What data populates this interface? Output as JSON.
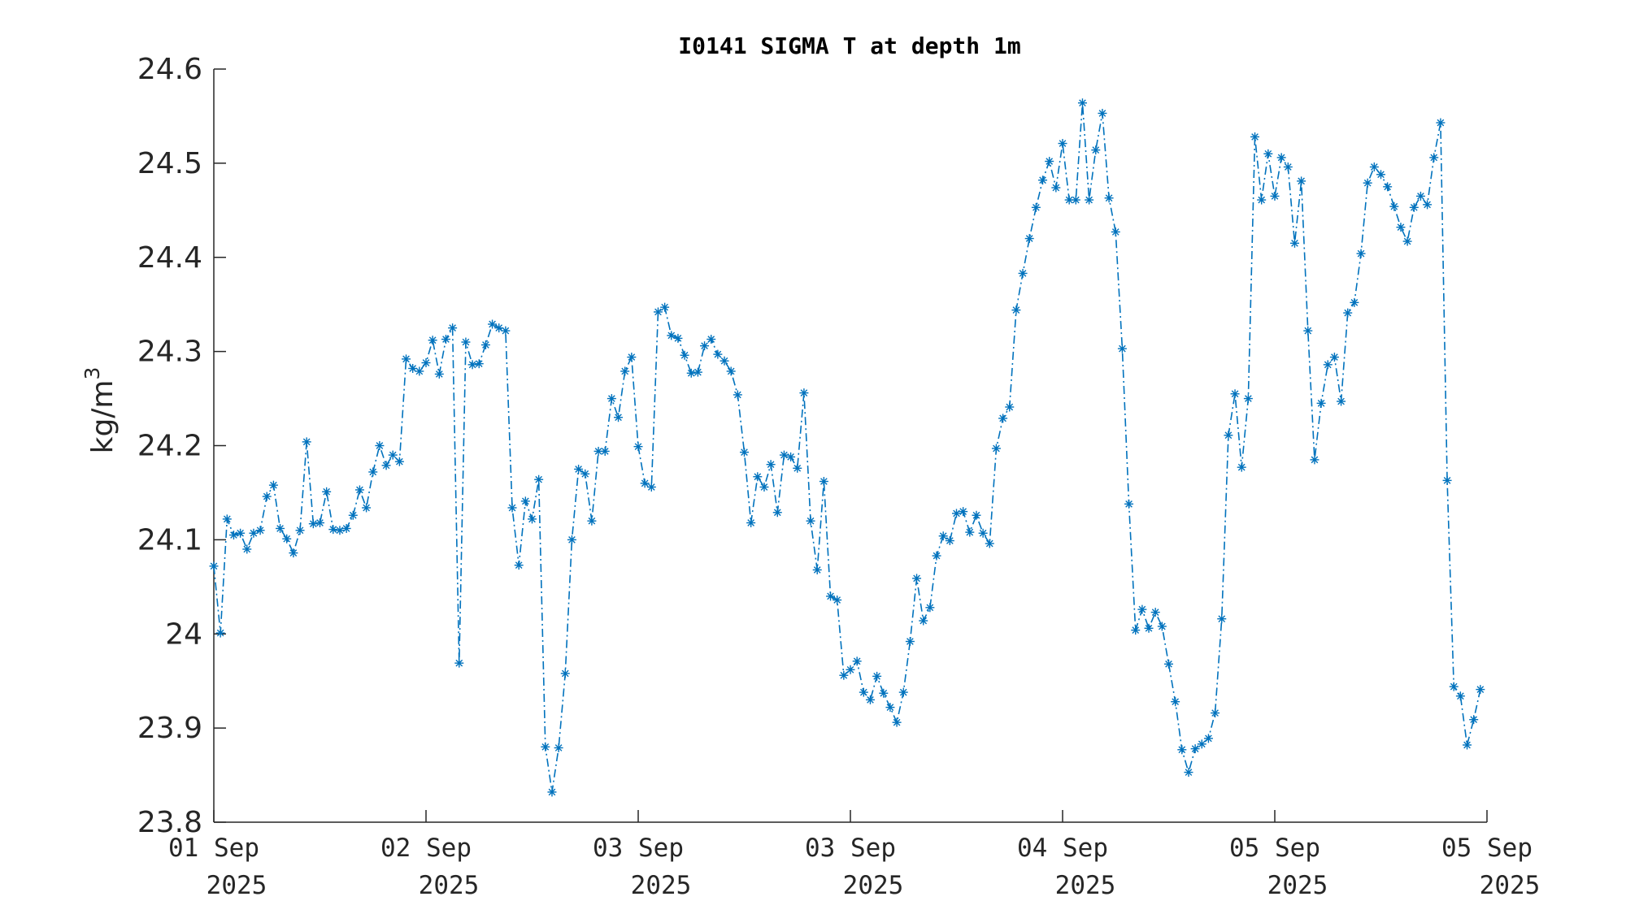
{
  "chart_data": {
    "type": "line",
    "title": "I0141 SIGMA T at depth 1m",
    "ylabel": "kg/m",
    "ylabel_superscript": "3",
    "xlabel": "",
    "ylim": [
      23.8,
      24.6
    ],
    "yticks": [
      "23.8",
      "23.9",
      "24",
      "24.1",
      "24.2",
      "24.3",
      "24.4",
      "24.5",
      "24.6"
    ],
    "xlim": [
      0,
      192
    ],
    "xticks": [
      {
        "line1": "01 Sep",
        "line2": "2025"
      },
      {
        "line1": "02 Sep",
        "line2": "2025"
      },
      {
        "line1": "03 Sep",
        "line2": "2025"
      },
      {
        "line1": "03 Sep",
        "line2": "2025"
      },
      {
        "line1": "04 Sep",
        "line2": "2025"
      },
      {
        "line1": "05 Sep",
        "line2": "2025"
      },
      {
        "line1": "05 Sep",
        "line2": "2025"
      }
    ],
    "grid": false,
    "legend": "none",
    "series_color": "#0072BD",
    "line_style": "dash-dot",
    "marker": "asterisk",
    "series": [
      {
        "values": [
          24.072,
          24.001,
          24.122,
          24.105,
          24.107,
          24.09,
          24.107,
          24.11,
          24.146,
          24.158,
          24.112,
          24.101,
          24.086,
          24.11,
          24.204,
          24.117,
          24.118,
          24.151,
          24.111,
          24.11,
          24.112,
          24.126,
          24.153,
          24.134,
          24.172,
          24.2,
          24.179,
          24.19,
          24.183,
          24.292,
          24.282,
          24.279,
          24.288,
          24.312,
          24.276,
          24.313,
          24.325,
          23.969,
          24.31,
          24.286,
          24.287,
          24.307,
          24.329,
          24.325,
          24.322,
          24.134,
          24.073,
          24.141,
          24.122,
          24.164,
          23.88,
          23.832,
          23.879,
          23.958,
          24.1,
          24.175,
          24.17,
          24.12,
          24.194,
          24.194,
          24.25,
          24.23,
          24.279,
          24.294,
          24.199,
          24.16,
          24.156,
          24.342,
          24.347,
          24.317,
          24.314,
          24.296,
          24.277,
          24.278,
          24.306,
          24.313,
          24.297,
          24.29,
          24.279,
          24.254,
          24.193,
          24.118,
          24.167,
          24.156,
          24.18,
          24.129,
          24.19,
          24.188,
          24.176,
          24.256,
          24.12,
          24.068,
          24.162,
          24.04,
          24.036,
          23.956,
          23.962,
          23.971,
          23.938,
          23.93,
          23.955,
          23.937,
          23.922,
          23.906,
          23.938,
          23.992,
          24.059,
          24.014,
          24.028,
          24.083,
          24.104,
          24.099,
          24.128,
          24.13,
          24.108,
          24.126,
          24.107,
          24.096,
          24.197,
          24.229,
          24.241,
          24.344,
          24.383,
          24.42,
          24.453,
          24.482,
          24.502,
          24.474,
          24.521,
          24.461,
          24.461,
          24.564,
          24.461,
          24.514,
          24.553,
          24.463,
          24.427,
          24.303,
          24.138,
          24.004,
          24.026,
          24.006,
          24.023,
          24.008,
          23.968,
          23.928,
          23.877,
          23.853,
          23.878,
          23.883,
          23.889,
          23.916,
          24.016,
          24.211,
          24.255,
          24.177,
          24.25,
          24.528,
          24.461,
          24.51,
          24.465,
          24.506,
          24.496,
          24.415,
          24.481,
          24.322,
          24.185,
          24.245,
          24.286,
          24.294,
          24.247,
          24.341,
          24.352,
          24.404,
          24.479,
          24.496,
          24.488,
          24.475,
          24.454,
          24.432,
          24.417,
          24.453,
          24.465,
          24.456,
          24.506,
          24.543,
          24.163,
          23.944,
          23.934,
          23.882,
          23.909,
          23.941
        ]
      }
    ]
  }
}
